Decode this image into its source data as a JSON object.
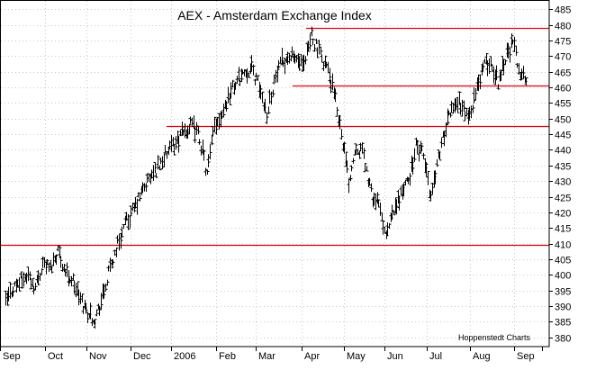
{
  "chart_data": {
    "type": "ohlc",
    "title": "AEX - Amsterdam Exchange Index",
    "credit": "Hoppenstedt Charts",
    "xlabel": "",
    "ylabel": "",
    "ylim": [
      377,
      488
    ],
    "y_ticks": [
      380,
      385,
      390,
      395,
      400,
      405,
      410,
      415,
      420,
      425,
      430,
      435,
      440,
      445,
      450,
      455,
      460,
      465,
      470,
      475,
      480,
      485
    ],
    "x_ticks": [
      "Sep",
      "Oct",
      "Nov",
      "Dec",
      "2006",
      "Feb",
      "Mar",
      "Apr",
      "May",
      "Jun",
      "Jul",
      "Aug",
      "Sep"
    ],
    "grid": true,
    "colors": {
      "bars": "#000000",
      "lines": "#e8000b",
      "grid": "#c8c8c8",
      "axis": "#000000"
    },
    "reference_lines": [
      {
        "y": 409.5,
        "x_start": "Sep",
        "x_end": "Sep"
      },
      {
        "y": 447.5,
        "x_start": "Dec",
        "x_end": "Sep"
      },
      {
        "y": 460.5,
        "x_start": "Apr",
        "x_end": "Sep"
      },
      {
        "y": 479,
        "x_start": "Apr",
        "x_end": "Sep"
      }
    ],
    "series": [
      {
        "week": 0,
        "price": 391
      },
      {
        "week": 1,
        "price": 396
      },
      {
        "week": 2,
        "price": 398
      },
      {
        "week": 3,
        "price": 400
      },
      {
        "week": 4,
        "price": 396
      },
      {
        "week": 5,
        "price": 404
      },
      {
        "week": 6,
        "price": 402
      },
      {
        "week": 7,
        "price": 408
      },
      {
        "week": 8,
        "price": 401
      },
      {
        "week": 9,
        "price": 398
      },
      {
        "week": 10,
        "price": 392
      },
      {
        "week": 11,
        "price": 388
      },
      {
        "week": 12,
        "price": 386
      },
      {
        "week": 13,
        "price": 393
      },
      {
        "week": 14,
        "price": 402
      },
      {
        "week": 15,
        "price": 410
      },
      {
        "week": 16,
        "price": 416
      },
      {
        "week": 17,
        "price": 420
      },
      {
        "week": 18,
        "price": 425
      },
      {
        "week": 19,
        "price": 430
      },
      {
        "week": 20,
        "price": 433
      },
      {
        "week": 21,
        "price": 437
      },
      {
        "week": 22,
        "price": 440
      },
      {
        "week": 23,
        "price": 443
      },
      {
        "week": 24,
        "price": 446
      },
      {
        "week": 25,
        "price": 448
      },
      {
        "week": 26,
        "price": 444
      },
      {
        "week": 27,
        "price": 432
      },
      {
        "week": 28,
        "price": 448
      },
      {
        "week": 29,
        "price": 452
      },
      {
        "week": 30,
        "price": 458
      },
      {
        "week": 31,
        "price": 462
      },
      {
        "week": 32,
        "price": 465
      },
      {
        "week": 33,
        "price": 466
      },
      {
        "week": 34,
        "price": 460
      },
      {
        "week": 35,
        "price": 452
      },
      {
        "week": 36,
        "price": 462
      },
      {
        "week": 37,
        "price": 468
      },
      {
        "week": 38,
        "price": 470
      },
      {
        "week": 39,
        "price": 469
      },
      {
        "week": 40,
        "price": 466
      },
      {
        "week": 41,
        "price": 477
      },
      {
        "week": 42,
        "price": 471
      },
      {
        "week": 43,
        "price": 467
      },
      {
        "week": 44,
        "price": 458
      },
      {
        "week": 45,
        "price": 446
      },
      {
        "week": 46,
        "price": 430
      },
      {
        "week": 47,
        "price": 442
      },
      {
        "week": 48,
        "price": 438
      },
      {
        "week": 49,
        "price": 426
      },
      {
        "week": 50,
        "price": 422
      },
      {
        "week": 51,
        "price": 412
      },
      {
        "week": 52,
        "price": 420
      },
      {
        "week": 53,
        "price": 426
      },
      {
        "week": 54,
        "price": 430
      },
      {
        "week": 55,
        "price": 441
      },
      {
        "week": 56,
        "price": 438
      },
      {
        "week": 57,
        "price": 425
      },
      {
        "week": 58,
        "price": 438
      },
      {
        "week": 59,
        "price": 447
      },
      {
        "week": 60,
        "price": 455
      },
      {
        "week": 61,
        "price": 455
      },
      {
        "week": 62,
        "price": 450
      },
      {
        "week": 63,
        "price": 458
      },
      {
        "week": 64,
        "price": 467
      },
      {
        "week": 65,
        "price": 468
      },
      {
        "week": 66,
        "price": 462
      },
      {
        "week": 67,
        "price": 470
      },
      {
        "week": 68,
        "price": 474
      },
      {
        "week": 69,
        "price": 465
      },
      {
        "week": 70,
        "price": 461
      }
    ]
  }
}
